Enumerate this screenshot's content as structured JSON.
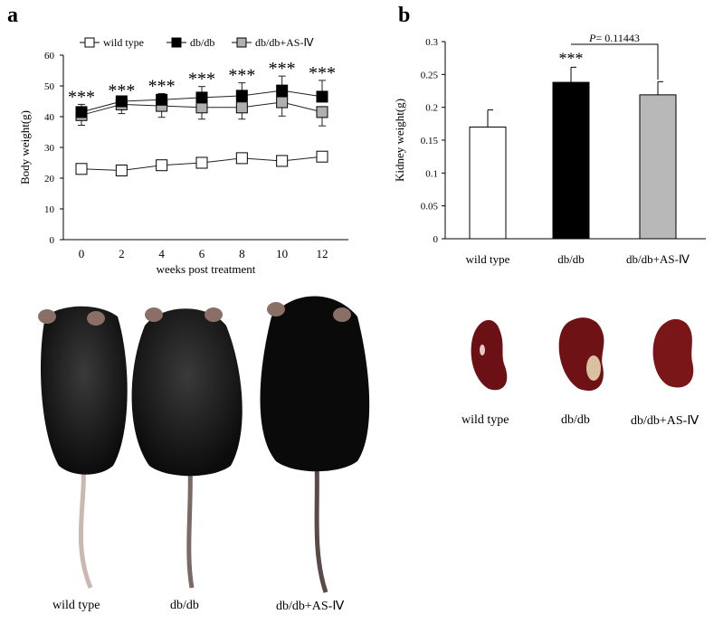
{
  "panels": {
    "a": "a",
    "b": "b"
  },
  "chart_data": [
    {
      "type": "line",
      "xlabel": "weeks post treatment",
      "ylabel": "Body weight(g)",
      "x": [
        0,
        2,
        4,
        6,
        8,
        10,
        12
      ],
      "xticks": [
        "0",
        "2",
        "4",
        "6",
        "8",
        "10",
        "12"
      ],
      "yticks": [
        "0",
        "10",
        "20",
        "30",
        "40",
        "50",
        "60"
      ],
      "ylim": [
        0,
        60
      ],
      "xlim": [
        -1,
        13
      ],
      "grid": false,
      "legend_placement": "top",
      "series": [
        {
          "name": "wild type",
          "color": "#ffffff",
          "values": [
            23,
            22.5,
            24.2,
            25,
            26.5,
            25.6,
            27
          ],
          "errors": [
            0.8,
            0.8,
            1,
            1,
            1.2,
            1,
            1.2
          ]
        },
        {
          "name": "db/db",
          "color": "#000000",
          "values": [
            41.5,
            45,
            45.5,
            46.2,
            46.8,
            48.5,
            46.5
          ],
          "errors": [
            2.5,
            1,
            2,
            3.6,
            4.2,
            4.7,
            5.3
          ]
        },
        {
          "name": "db/db+AS-Ⅳ",
          "color": "#b0b0b0",
          "values": [
            40.5,
            44,
            43.5,
            43,
            43,
            44.7,
            41.5
          ],
          "errors": [
            3.3,
            3,
            3.7,
            3.8,
            3.8,
            4.5,
            4.5
          ]
        }
      ],
      "annotations": [
        "***",
        "***",
        "***",
        "***",
        "***",
        "***",
        "***"
      ]
    },
    {
      "type": "bar",
      "ylabel": "Kidney weight(g)",
      "categories": [
        "wild type",
        "db/db",
        "db/db+AS-Ⅳ"
      ],
      "values": [
        0.17,
        0.238,
        0.219
      ],
      "errors": [
        0.026,
        0.023,
        0.02
      ],
      "colors": [
        "#ffffff",
        "#000000",
        "#b8b8b8"
      ],
      "yticks": [
        "0",
        "0.05",
        "0.1",
        "0.15",
        "0.2",
        "0.25",
        "0.3"
      ],
      "ylim": [
        0,
        0.3
      ],
      "grid": false,
      "annotations": {
        "star": "***",
        "p_label": "P",
        "p_value": "= 0.11443"
      }
    }
  ],
  "mice_labels": [
    "wild type",
    "db/db",
    "db/db+AS-Ⅳ"
  ],
  "kidney_labels": [
    "wild type",
    "db/db",
    "db/db+AS-Ⅳ"
  ]
}
